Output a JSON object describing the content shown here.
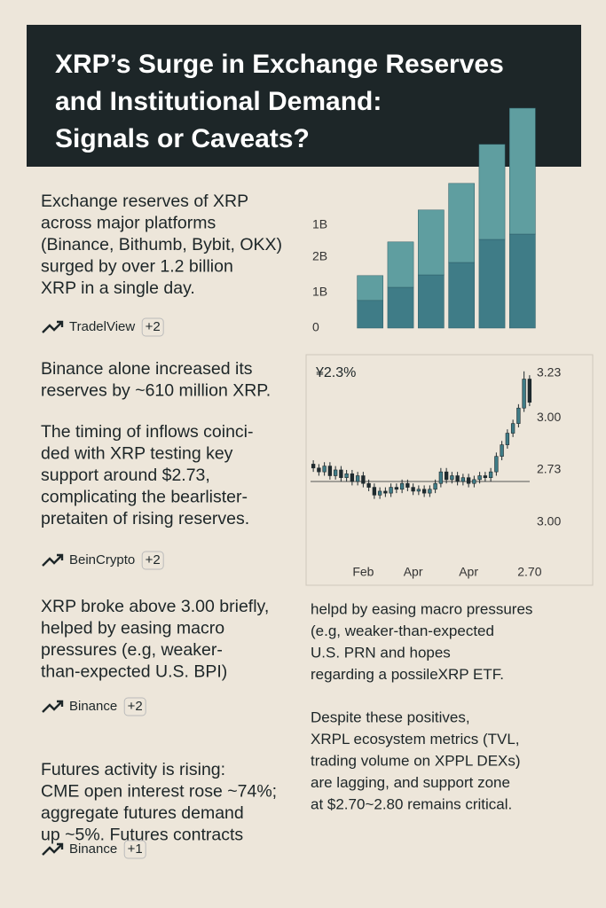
{
  "header": {
    "title": [
      "XRP’s Surge in Exchange Reserves",
      "and Institutional Demand:",
      "Signals or Caveats?"
    ]
  },
  "sections": [
    {
      "paragraphs": [
        [
          "Exchange reserves of XRP",
          "across major platforms",
          "(Binance, Bithumb, Bybit, OKX)",
          "surged by over 1.2 billion",
          "XRP in a single day."
        ]
      ],
      "source": {
        "name": "TradelView",
        "count": "+2"
      }
    },
    {
      "paragraphs": [
        [
          "Binance alone increased its",
          "reserves by ~610 million XRP."
        ],
        [
          "The timing of inflows coinci-",
          "ded with XRP testing key",
          "support around $2.73,",
          "complicating the bearlister-",
          "pretaiten of rising reserves."
        ]
      ],
      "source": {
        "name": "BeinCrypto",
        "count": "+2"
      }
    },
    {
      "paragraphs": [
        [
          "XRP broke above 3.00 briefly,",
          "helped by easing macro",
          "pressures (e.g, weaker-",
          "than-expected U.S. BPI)"
        ]
      ],
      "source": {
        "name": "Binance",
        "count": "+2"
      }
    },
    {
      "paragraphs": [
        [
          "Futures activity is rising:",
          "CME open interest rose ~74%;",
          "aggregate futures demand",
          "up ~5%. Futures contracts"
        ]
      ],
      "source": {
        "name": "Binance",
        "count": "+1"
      }
    }
  ],
  "right_paragraphs": [
    [
      "helpd by easing macro pressures",
      "(e.g, weaker-than-expected",
      "U.S. PRN and hopes",
      "regarding a possileXRP ETF."
    ],
    [
      "Despite these positives,",
      "XRPL ecosystem metrics (TVL,",
      "trading volume on XPPL DEXs)",
      "are lagging, and support zone",
      "at $2.70~2.80 remains critical."
    ]
  ],
  "chart_data": [
    {
      "type": "bar",
      "stacked": true,
      "series": [
        {
          "color": "#3f7c87",
          "values": [
            0.78,
            1.15,
            1.5,
            1.85,
            2.5,
            2.65
          ]
        },
        {
          "color": "#5f9ea0",
          "values": [
            0.7,
            1.28,
            1.83,
            2.23,
            2.68,
            3.55
          ]
        }
      ],
      "ylim": [
        0,
        6.5
      ],
      "yticks": [
        0,
        {
          "value": 1,
          "label": "1B"
        },
        {
          "value": 2,
          "label": "2B"
        }
      ],
      "annotations": [
        "1B"
      ]
    },
    {
      "type": "candlestick",
      "title": "¥2.3%",
      "x": [
        1,
        2,
        3,
        4,
        5,
        6,
        7,
        8,
        9,
        10,
        11,
        12,
        13,
        14,
        15,
        16,
        17,
        18,
        19,
        20,
        21,
        22,
        23,
        24,
        25,
        26,
        27,
        28,
        29,
        30,
        31,
        32,
        33,
        34,
        35,
        36,
        37,
        38,
        39,
        40
      ],
      "open": [
        2.76,
        2.74,
        2.72,
        2.75,
        2.7,
        2.73,
        2.69,
        2.71,
        2.67,
        2.7,
        2.66,
        2.64,
        2.6,
        2.62,
        2.61,
        2.64,
        2.63,
        2.66,
        2.64,
        2.62,
        2.63,
        2.61,
        2.63,
        2.66,
        2.72,
        2.68,
        2.7,
        2.67,
        2.69,
        2.66,
        2.68,
        2.7,
        2.69,
        2.72,
        2.8,
        2.86,
        2.92,
        2.97,
        3.05,
        3.2
      ],
      "high": [
        2.78,
        2.76,
        2.77,
        2.77,
        2.75,
        2.75,
        2.73,
        2.73,
        2.72,
        2.72,
        2.68,
        2.66,
        2.64,
        2.64,
        2.66,
        2.66,
        2.68,
        2.68,
        2.66,
        2.65,
        2.65,
        2.65,
        2.68,
        2.74,
        2.74,
        2.72,
        2.72,
        2.71,
        2.71,
        2.7,
        2.72,
        2.72,
        2.74,
        2.82,
        2.88,
        2.94,
        2.99,
        3.07,
        3.24,
        3.22
      ],
      "low": [
        2.72,
        2.7,
        2.7,
        2.68,
        2.68,
        2.67,
        2.67,
        2.65,
        2.65,
        2.64,
        2.62,
        2.58,
        2.58,
        2.59,
        2.59,
        2.61,
        2.61,
        2.62,
        2.6,
        2.6,
        2.59,
        2.59,
        2.61,
        2.64,
        2.66,
        2.66,
        2.65,
        2.65,
        2.64,
        2.64,
        2.66,
        2.67,
        2.67,
        2.7,
        2.78,
        2.84,
        2.9,
        2.95,
        3.03,
        3.06
      ],
      "close": [
        2.74,
        2.72,
        2.75,
        2.7,
        2.73,
        2.69,
        2.71,
        2.67,
        2.7,
        2.66,
        2.64,
        2.6,
        2.62,
        2.61,
        2.64,
        2.63,
        2.66,
        2.64,
        2.62,
        2.63,
        2.61,
        2.63,
        2.66,
        2.72,
        2.68,
        2.7,
        2.67,
        2.69,
        2.66,
        2.68,
        2.7,
        2.69,
        2.72,
        2.8,
        2.86,
        2.92,
        2.97,
        3.05,
        3.2,
        3.08
      ],
      "up_color": "#3f7c87",
      "down_color": "#1f2a2e",
      "xlim": [
        0.5,
        40.5
      ],
      "xticks": [
        {
          "value": 10,
          "label": "Feb"
        },
        {
          "value": 19,
          "label": "Apr"
        },
        {
          "value": 29,
          "label": "Apr"
        },
        {
          "value": 40,
          "label": "2.70"
        }
      ],
      "ylim": [
        2.45,
        3.3
      ],
      "yticks": [
        3.23,
        {
          "value": 3,
          "label": "3.00"
        },
        2.73
      ],
      "hline": 2.67,
      "annotations": [
        "3.00"
      ]
    }
  ]
}
